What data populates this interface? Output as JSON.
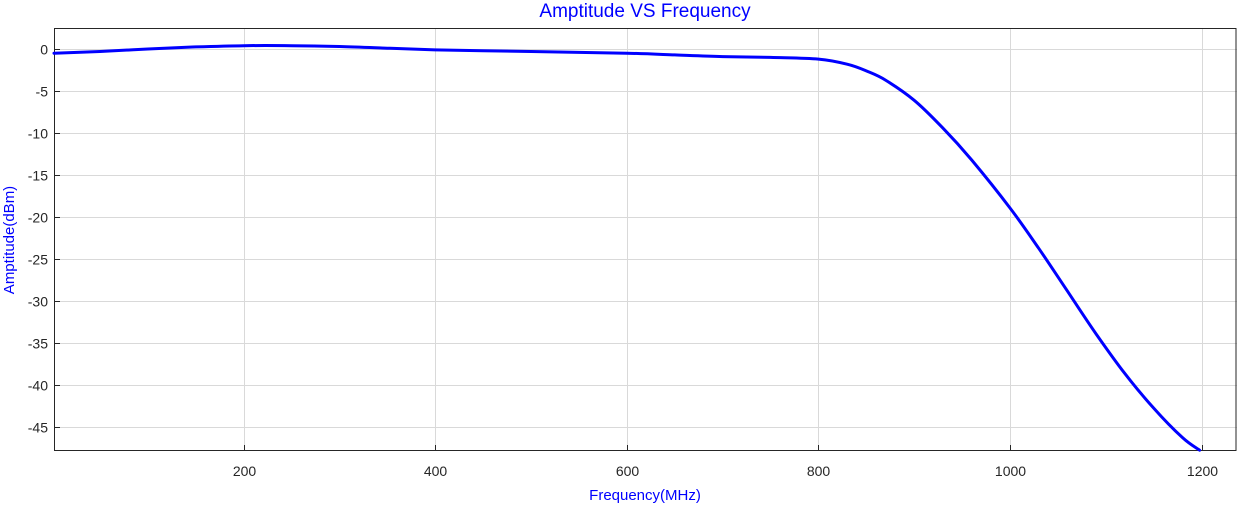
{
  "chart_data": {
    "type": "line",
    "title": "Amptitude VS Frequency",
    "xlabel": "Frequency(MHz)",
    "ylabel": "Amptitude(dBm)",
    "xlim": [
      2,
      1237
    ],
    "ylim": [
      -47.8,
      2.5
    ],
    "xticks": [
      200,
      400,
      600,
      800,
      1000,
      1200
    ],
    "yticks": [
      0,
      -5,
      -10,
      -15,
      -20,
      -25,
      -30,
      -35,
      -40,
      -45
    ],
    "grid": true,
    "legend": "none",
    "colors": {
      "series": "#0000ff",
      "title": "#0000ff",
      "labels": "#0000ff",
      "grid": "#d9d9d9",
      "axes": "#262626"
    },
    "series": [
      {
        "x": [
          2,
          50,
          100,
          150,
          200,
          250,
          300,
          350,
          400,
          450,
          500,
          550,
          600,
          650,
          700,
          750,
          800,
          830,
          850,
          870,
          900,
          930,
          960,
          1000,
          1030,
          1060,
          1090,
          1120,
          1150,
          1180,
          1198
        ],
        "y": [
          -0.5,
          -0.3,
          0.0,
          0.25,
          0.4,
          0.4,
          0.3,
          0.1,
          -0.1,
          -0.2,
          -0.3,
          -0.4,
          -0.5,
          -0.7,
          -0.9,
          -1.0,
          -1.2,
          -1.8,
          -2.6,
          -3.7,
          -6.1,
          -9.4,
          -13.2,
          -18.9,
          -23.7,
          -28.8,
          -33.9,
          -38.6,
          -42.7,
          -46.2,
          -47.7
        ]
      }
    ]
  }
}
